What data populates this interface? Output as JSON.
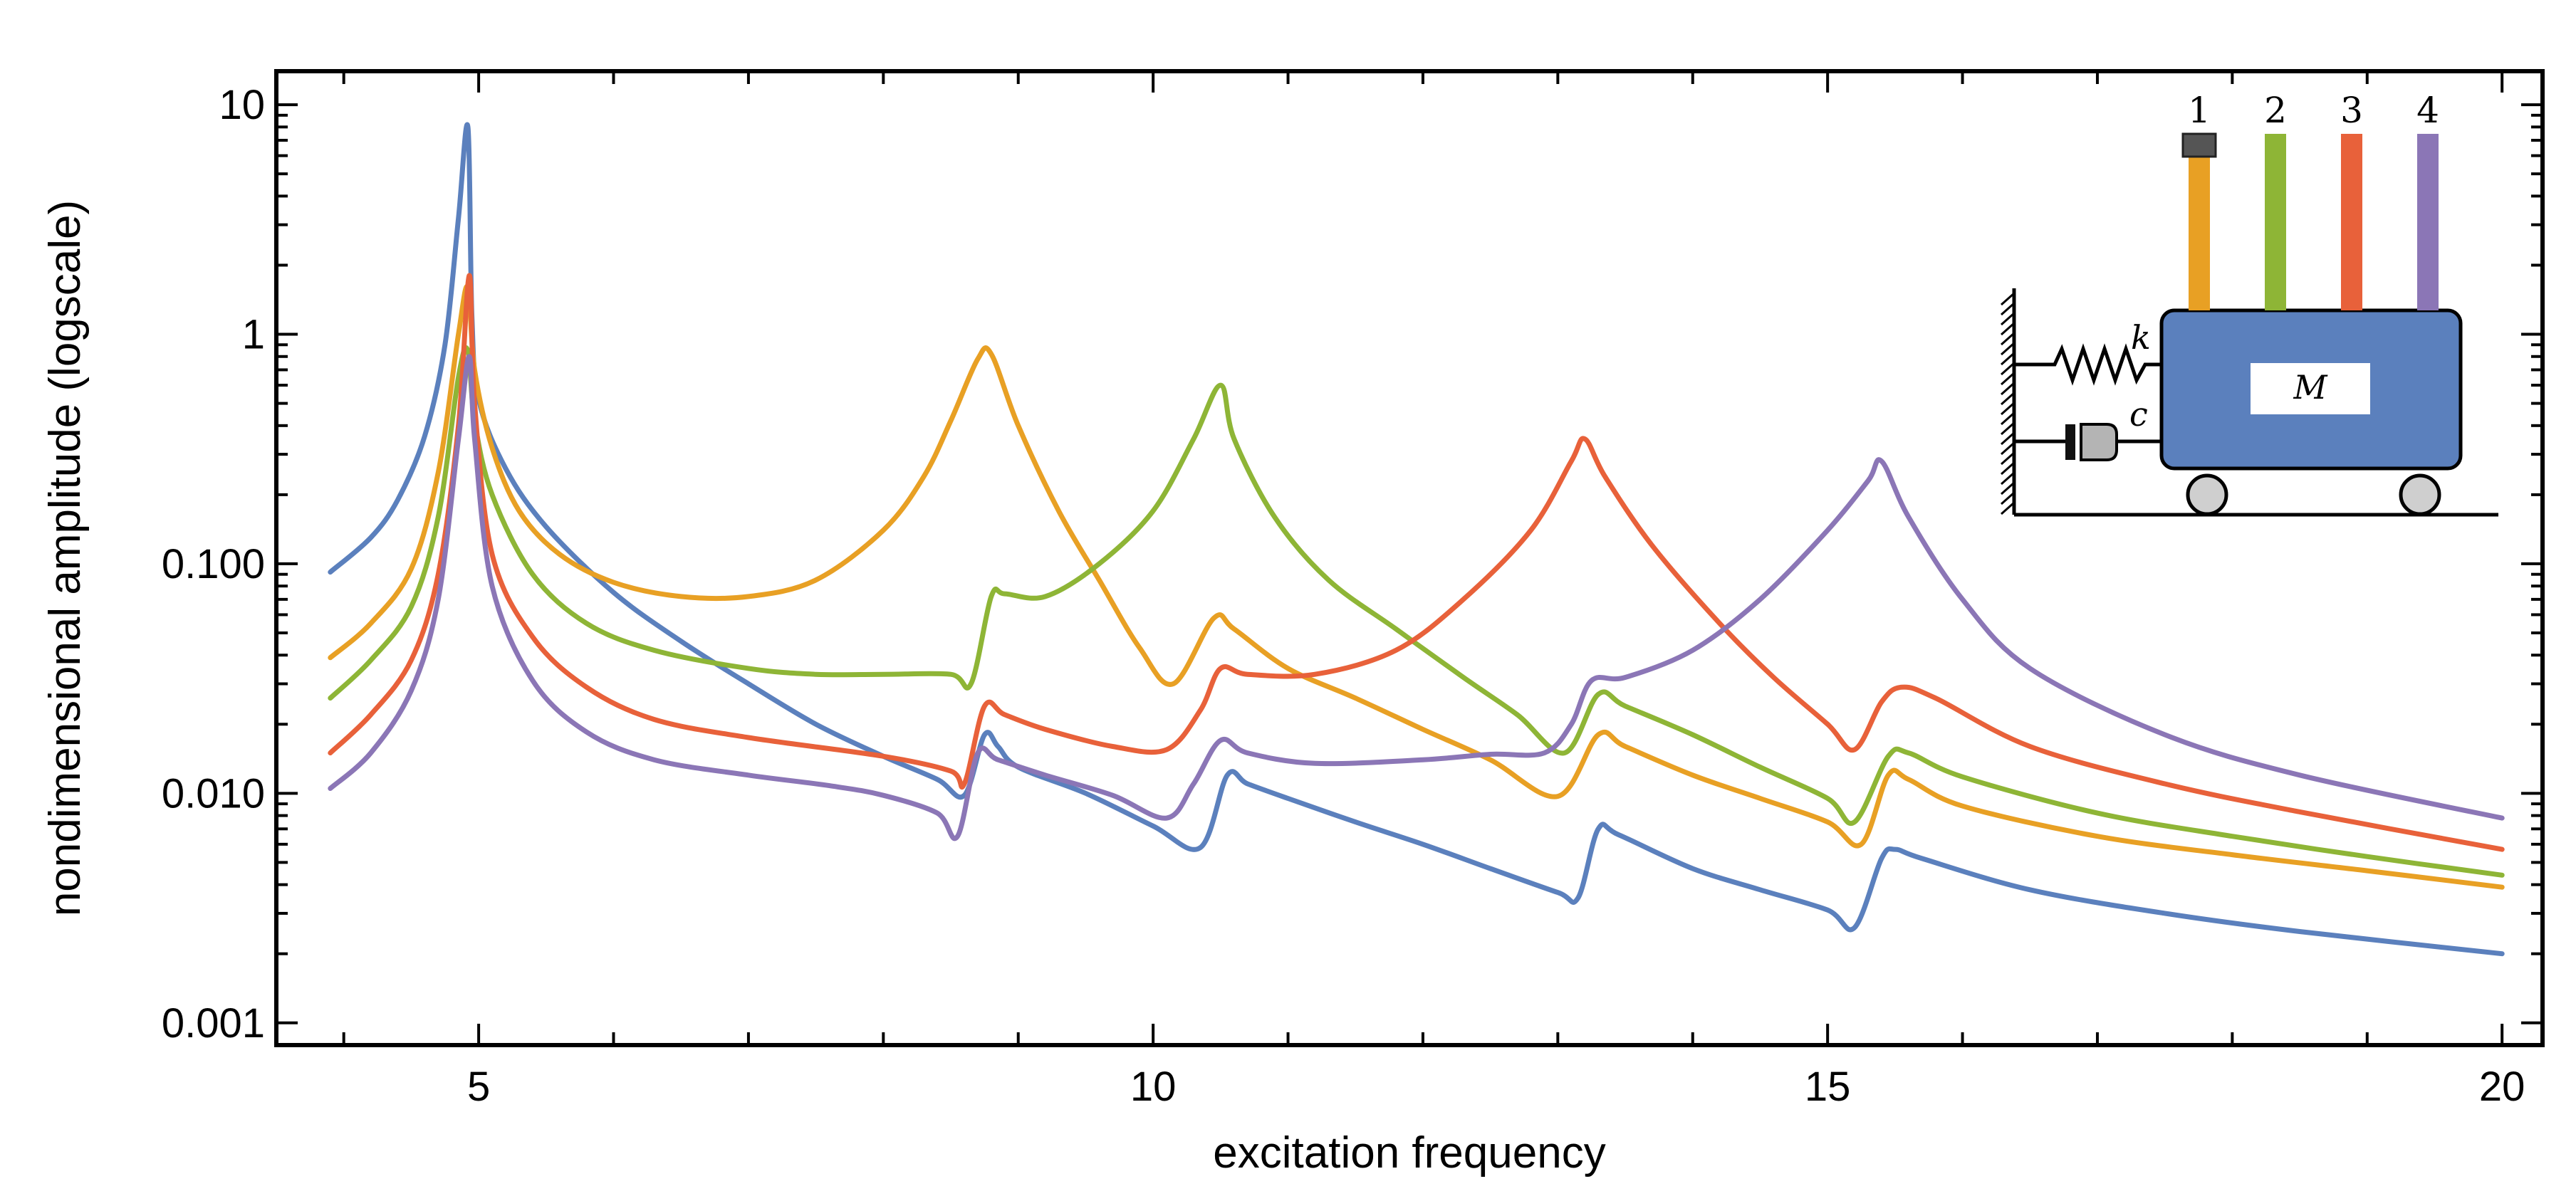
{
  "chart_data": {
    "type": "line",
    "xlabel": "excitation frequency",
    "ylabel": "nondimensional amplitude (logscale)",
    "xlim": [
      3.5,
      20.3
    ],
    "ylim": [
      0.0008,
      14
    ],
    "yscale": "log",
    "xticks": [
      {
        "value": 5,
        "label": "5"
      },
      {
        "value": 10,
        "label": "10"
      },
      {
        "value": 15,
        "label": "15"
      },
      {
        "value": 20,
        "label": "20"
      }
    ],
    "yticks": [
      {
        "value": 10,
        "label": "10"
      },
      {
        "value": 1,
        "label": "1"
      },
      {
        "value": 0.1,
        "label": "0.100"
      },
      {
        "value": 0.01,
        "label": "0.010"
      },
      {
        "value": 0.001,
        "label": "0.001"
      }
    ],
    "grid": false,
    "legend": "none",
    "series": [
      {
        "color": "#5b80bd",
        "points": [
          [
            3.9,
            0.092
          ],
          [
            4.2,
            0.13
          ],
          [
            4.4,
            0.19
          ],
          [
            4.6,
            0.36
          ],
          [
            4.75,
            0.9
          ],
          [
            4.85,
            3.2
          ],
          [
            4.92,
            8.0
          ],
          [
            4.95,
            1.2
          ],
          [
            5.0,
            0.52
          ],
          [
            5.2,
            0.26
          ],
          [
            5.5,
            0.145
          ],
          [
            6,
            0.075
          ],
          [
            6.5,
            0.046
          ],
          [
            7,
            0.03
          ],
          [
            7.5,
            0.02
          ],
          [
            8,
            0.0145
          ],
          [
            8.4,
            0.0115
          ],
          [
            8.6,
            0.0098
          ],
          [
            8.75,
            0.018
          ],
          [
            8.85,
            0.016
          ],
          [
            9,
            0.013
          ],
          [
            9.5,
            0.01
          ],
          [
            10,
            0.0072
          ],
          [
            10.35,
            0.0058
          ],
          [
            10.55,
            0.012
          ],
          [
            10.7,
            0.011
          ],
          [
            11,
            0.0095
          ],
          [
            11.5,
            0.0075
          ],
          [
            12,
            0.006
          ],
          [
            12.5,
            0.0047
          ],
          [
            13,
            0.0037
          ],
          [
            13.15,
            0.0035
          ],
          [
            13.3,
            0.007
          ],
          [
            13.45,
            0.0066
          ],
          [
            14,
            0.0047
          ],
          [
            14.5,
            0.0038
          ],
          [
            15,
            0.0031
          ],
          [
            15.2,
            0.0026
          ],
          [
            15.4,
            0.0052
          ],
          [
            15.5,
            0.0057
          ],
          [
            15.7,
            0.0052
          ],
          [
            16.5,
            0.0038
          ],
          [
            17.5,
            0.003
          ],
          [
            18.5,
            0.0025
          ],
          [
            20,
            0.002
          ]
        ]
      },
      {
        "color": "#e8a024",
        "points": [
          [
            3.9,
            0.039
          ],
          [
            4.2,
            0.055
          ],
          [
            4.5,
            0.095
          ],
          [
            4.7,
            0.25
          ],
          [
            4.85,
            1.0
          ],
          [
            4.92,
            1.6
          ],
          [
            4.97,
            0.7
          ],
          [
            5.1,
            0.32
          ],
          [
            5.3,
            0.17
          ],
          [
            5.6,
            0.11
          ],
          [
            6,
            0.083
          ],
          [
            6.5,
            0.072
          ],
          [
            7,
            0.072
          ],
          [
            7.5,
            0.085
          ],
          [
            8,
            0.14
          ],
          [
            8.3,
            0.24
          ],
          [
            8.5,
            0.42
          ],
          [
            8.7,
            0.78
          ],
          [
            8.8,
            0.82
          ],
          [
            9,
            0.4
          ],
          [
            9.3,
            0.17
          ],
          [
            9.6,
            0.085
          ],
          [
            9.9,
            0.043
          ],
          [
            10.15,
            0.03
          ],
          [
            10.45,
            0.058
          ],
          [
            10.6,
            0.052
          ],
          [
            11,
            0.035
          ],
          [
            11.5,
            0.026
          ],
          [
            12,
            0.019
          ],
          [
            12.5,
            0.014
          ],
          [
            13,
            0.0097
          ],
          [
            13.3,
            0.018
          ],
          [
            13.5,
            0.016
          ],
          [
            14,
            0.012
          ],
          [
            14.5,
            0.0095
          ],
          [
            15,
            0.0075
          ],
          [
            15.25,
            0.006
          ],
          [
            15.45,
            0.012
          ],
          [
            15.6,
            0.0115
          ],
          [
            16,
            0.0088
          ],
          [
            17,
            0.0065
          ],
          [
            18,
            0.0054
          ],
          [
            19,
            0.0046
          ],
          [
            20,
            0.0039
          ]
        ]
      },
      {
        "color": "#8eb536",
        "points": [
          [
            3.9,
            0.026
          ],
          [
            4.2,
            0.038
          ],
          [
            4.5,
            0.065
          ],
          [
            4.7,
            0.16
          ],
          [
            4.85,
            0.65
          ],
          [
            4.92,
            0.85
          ],
          [
            4.97,
            0.42
          ],
          [
            5.1,
            0.2
          ],
          [
            5.4,
            0.09
          ],
          [
            5.8,
            0.055
          ],
          [
            6.3,
            0.042
          ],
          [
            7,
            0.035
          ],
          [
            7.5,
            0.033
          ],
          [
            8,
            0.033
          ],
          [
            8.5,
            0.033
          ],
          [
            8.65,
            0.03
          ],
          [
            8.8,
            0.072
          ],
          [
            8.9,
            0.074
          ],
          [
            9.2,
            0.072
          ],
          [
            9.6,
            0.1
          ],
          [
            10,
            0.17
          ],
          [
            10.3,
            0.35
          ],
          [
            10.5,
            0.6
          ],
          [
            10.6,
            0.35
          ],
          [
            10.9,
            0.16
          ],
          [
            11.3,
            0.085
          ],
          [
            11.8,
            0.052
          ],
          [
            12.3,
            0.032
          ],
          [
            12.7,
            0.022
          ],
          [
            13.05,
            0.015
          ],
          [
            13.3,
            0.027
          ],
          [
            13.5,
            0.024
          ],
          [
            14,
            0.018
          ],
          [
            14.5,
            0.013
          ],
          [
            15,
            0.0095
          ],
          [
            15.2,
            0.0075
          ],
          [
            15.45,
            0.0145
          ],
          [
            15.6,
            0.015
          ],
          [
            16,
            0.0118
          ],
          [
            17,
            0.0082
          ],
          [
            18,
            0.0065
          ],
          [
            19,
            0.0053
          ],
          [
            20,
            0.0044
          ]
        ]
      },
      {
        "color": "#e8613a",
        "points": [
          [
            3.9,
            0.015
          ],
          [
            4.2,
            0.022
          ],
          [
            4.5,
            0.038
          ],
          [
            4.7,
            0.09
          ],
          [
            4.85,
            0.4
          ],
          [
            4.93,
            1.8
          ],
          [
            4.97,
            0.5
          ],
          [
            5.1,
            0.11
          ],
          [
            5.4,
            0.048
          ],
          [
            5.8,
            0.029
          ],
          [
            6.3,
            0.021
          ],
          [
            7,
            0.0175
          ],
          [
            8,
            0.0145
          ],
          [
            8.5,
            0.0125
          ],
          [
            8.6,
            0.011
          ],
          [
            8.75,
            0.024
          ],
          [
            8.9,
            0.022
          ],
          [
            9.2,
            0.019
          ],
          [
            9.7,
            0.016
          ],
          [
            10.1,
            0.0155
          ],
          [
            10.35,
            0.023
          ],
          [
            10.5,
            0.035
          ],
          [
            10.7,
            0.033
          ],
          [
            11.2,
            0.033
          ],
          [
            11.8,
            0.042
          ],
          [
            12.3,
            0.07
          ],
          [
            12.8,
            0.14
          ],
          [
            13.1,
            0.28
          ],
          [
            13.2,
            0.35
          ],
          [
            13.35,
            0.24
          ],
          [
            13.7,
            0.12
          ],
          [
            14.2,
            0.055
          ],
          [
            14.6,
            0.032
          ],
          [
            15,
            0.02
          ],
          [
            15.2,
            0.0155
          ],
          [
            15.4,
            0.025
          ],
          [
            15.55,
            0.029
          ],
          [
            15.8,
            0.026
          ],
          [
            16.5,
            0.016
          ],
          [
            17.5,
            0.011
          ],
          [
            18.5,
            0.0083
          ],
          [
            20,
            0.0057
          ]
        ]
      },
      {
        "color": "#8b76b6",
        "points": [
          [
            3.9,
            0.0105
          ],
          [
            4.2,
            0.015
          ],
          [
            4.5,
            0.028
          ],
          [
            4.7,
            0.07
          ],
          [
            4.85,
            0.35
          ],
          [
            4.93,
            0.8
          ],
          [
            4.97,
            0.35
          ],
          [
            5.1,
            0.08
          ],
          [
            5.4,
            0.031
          ],
          [
            5.8,
            0.0185
          ],
          [
            6.3,
            0.014
          ],
          [
            7,
            0.012
          ],
          [
            7.6,
            0.0108
          ],
          [
            8,
            0.0098
          ],
          [
            8.4,
            0.0082
          ],
          [
            8.55,
            0.0065
          ],
          [
            8.7,
            0.015
          ],
          [
            8.85,
            0.014
          ],
          [
            9.2,
            0.012
          ],
          [
            9.7,
            0.0098
          ],
          [
            10.1,
            0.0078
          ],
          [
            10.3,
            0.011
          ],
          [
            10.5,
            0.017
          ],
          [
            10.7,
            0.015
          ],
          [
            11.2,
            0.0135
          ],
          [
            12,
            0.014
          ],
          [
            12.5,
            0.0148
          ],
          [
            12.9,
            0.015
          ],
          [
            13.1,
            0.02
          ],
          [
            13.25,
            0.031
          ],
          [
            13.5,
            0.032
          ],
          [
            14,
            0.042
          ],
          [
            14.5,
            0.07
          ],
          [
            15,
            0.14
          ],
          [
            15.3,
            0.23
          ],
          [
            15.4,
            0.28
          ],
          [
            15.6,
            0.16
          ],
          [
            16,
            0.07
          ],
          [
            16.5,
            0.035
          ],
          [
            17.5,
            0.018
          ],
          [
            18.5,
            0.012
          ],
          [
            20,
            0.0078
          ]
        ]
      }
    ]
  },
  "inset": {
    "labels": [
      "1",
      "2",
      "3",
      "4"
    ],
    "mass_label": "M",
    "spring_label": "k",
    "damper_label": "c",
    "bar_colors": [
      "#e8a024",
      "#8eb536",
      "#e8613a",
      "#8b76b6"
    ],
    "body_color": "#5b80bd"
  }
}
